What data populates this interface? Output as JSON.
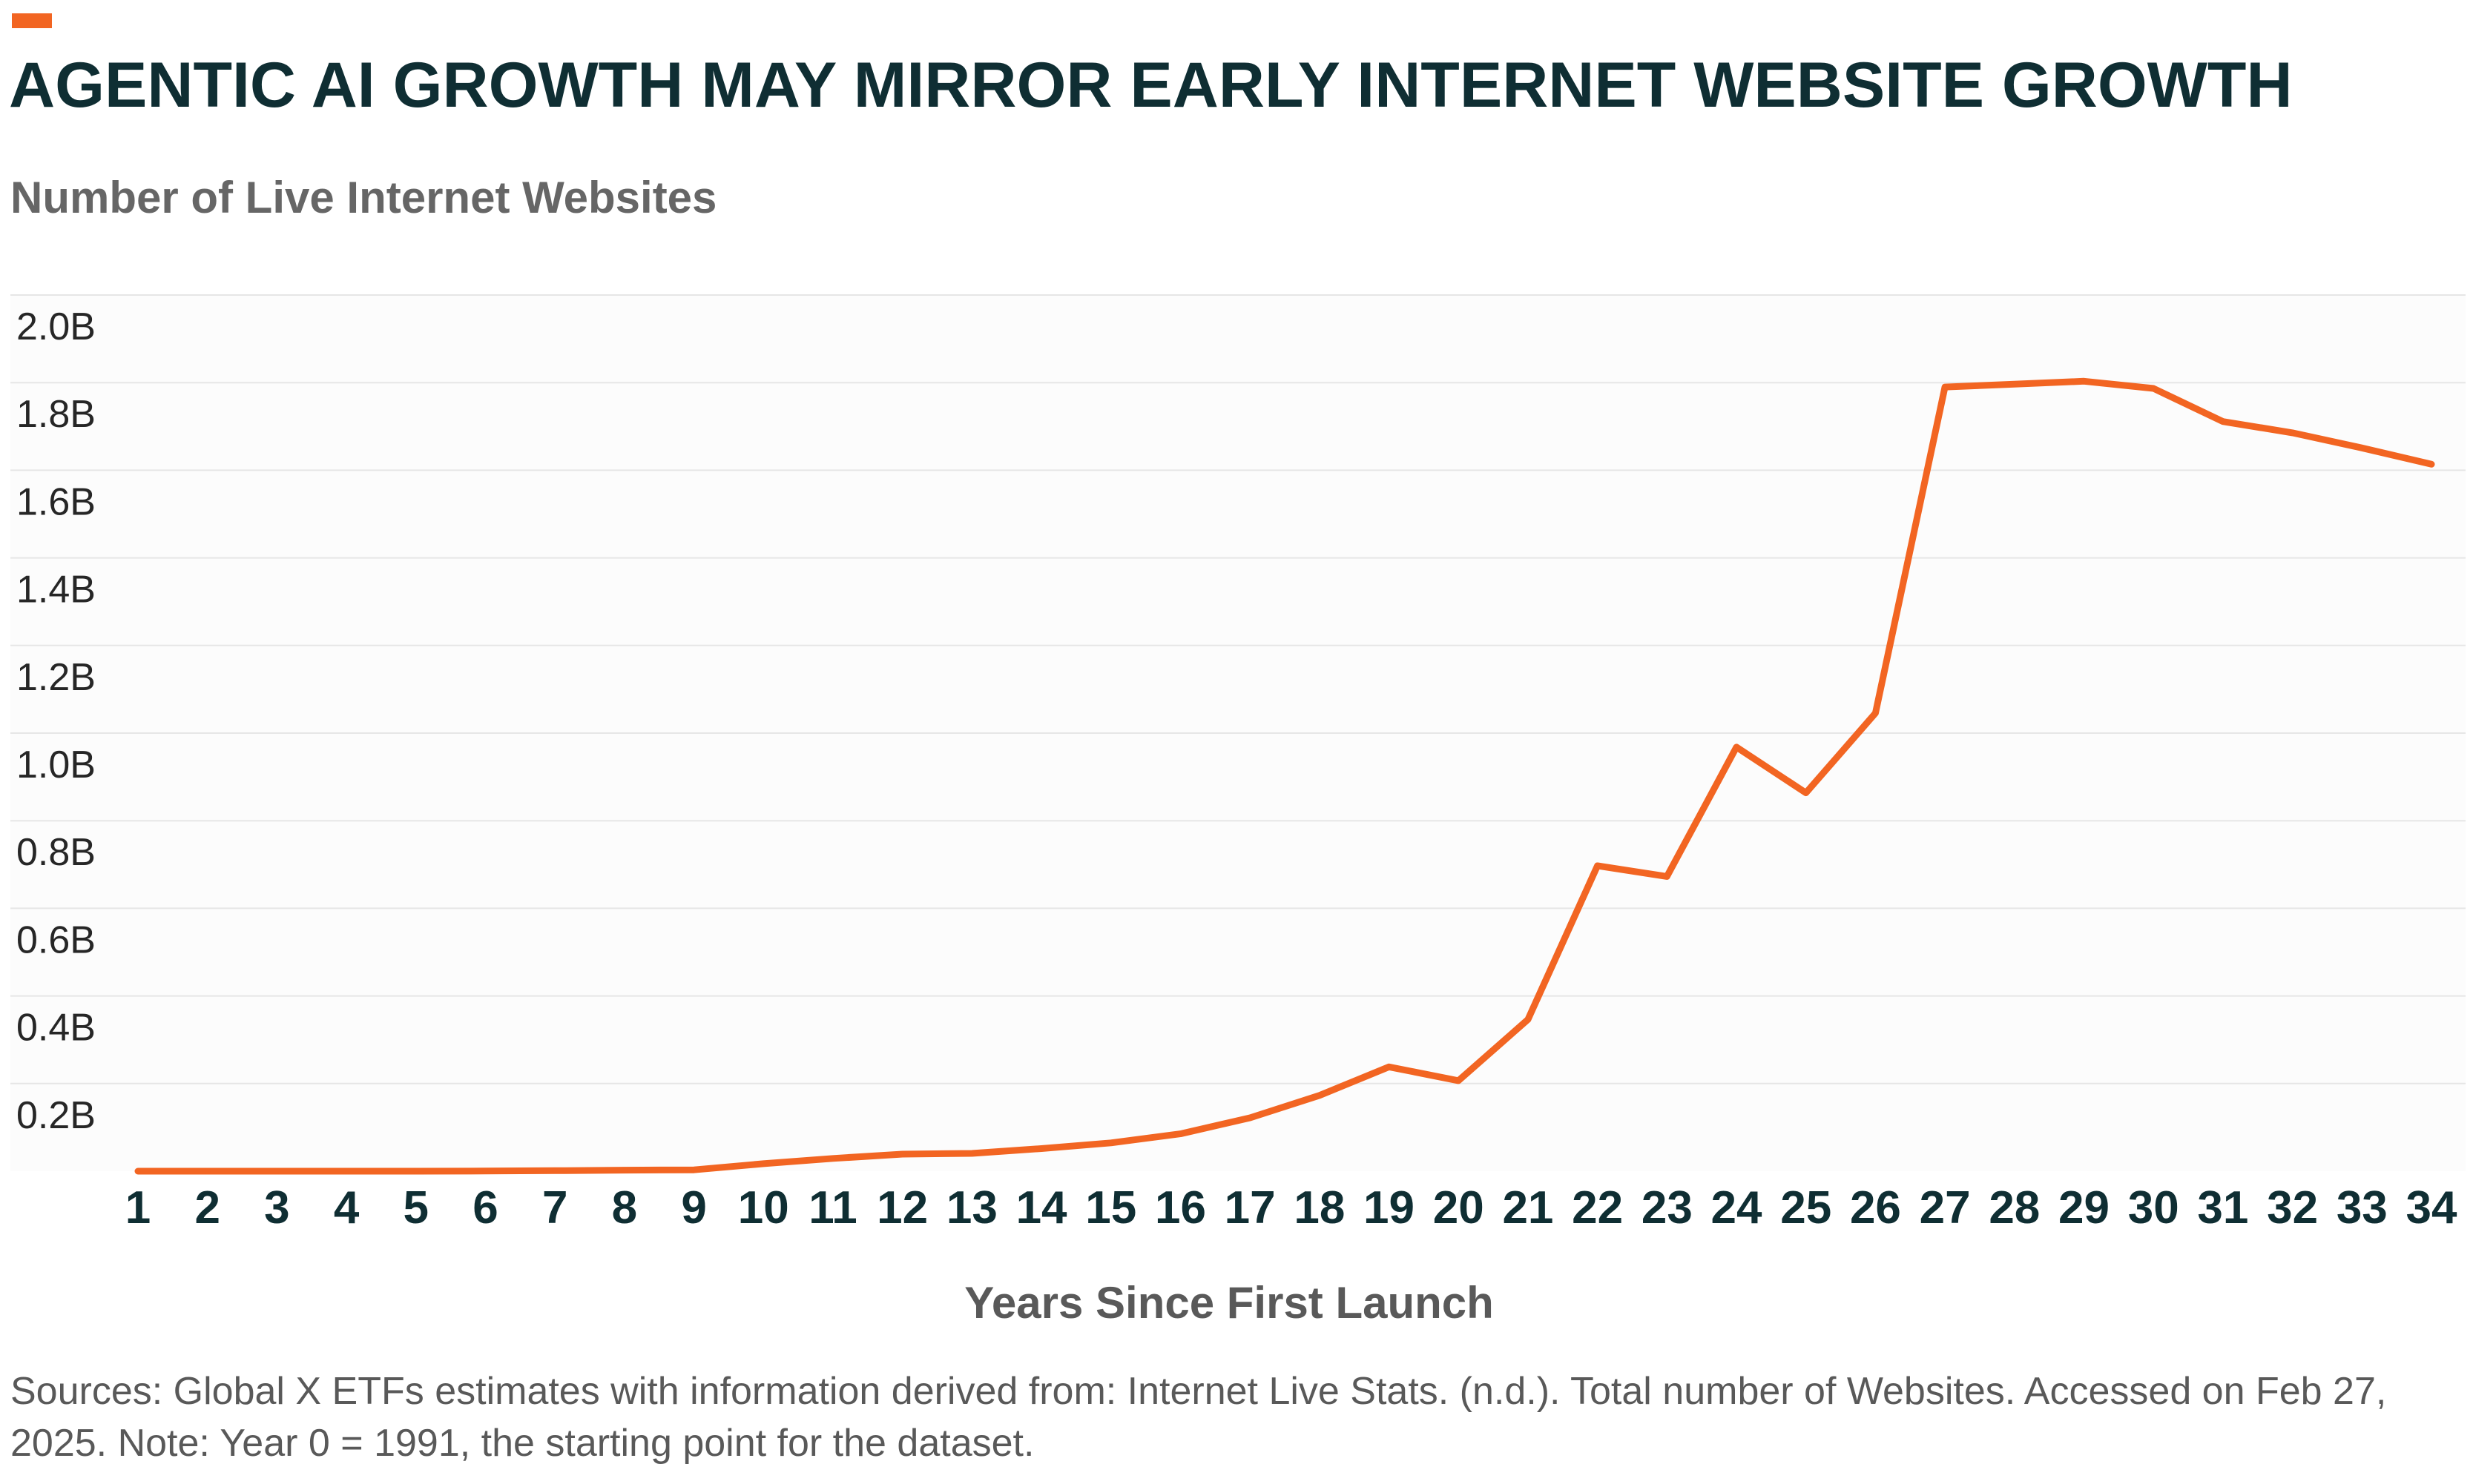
{
  "title": "AGENTIC AI GROWTH MAY MIRROR EARLY INTERNET WEBSITE GROWTH",
  "subtitle": "Number of Live Internet Websites",
  "source_note": "Sources: Global X ETFs estimates with information derived from: Internet Live Stats. (n.d.). Total number of Websites. Accessed on Feb 27, 2025. Note: Year 0 = 1991, the starting point for the dataset.",
  "colors": {
    "accent": "#f26522",
    "line": "#f26522",
    "title": "#0f2e33",
    "grid": "#e6e6e6",
    "plot_bg": "#fcfcfc"
  },
  "chart_data": {
    "type": "line",
    "xlabel": "Years Since First Launch",
    "ylabel": "",
    "ylim": [
      0,
      2.0
    ],
    "y_ticks": [
      0.2,
      0.4,
      0.6,
      0.8,
      1.0,
      1.2,
      1.4,
      1.6,
      1.8,
      2.0
    ],
    "y_tick_labels": [
      "0.2B",
      "0.4B",
      "0.6B",
      "0.8B",
      "1.0B",
      "1.2B",
      "1.4B",
      "1.6B",
      "1.8B",
      "2.0B"
    ],
    "x": [
      1,
      2,
      3,
      4,
      5,
      6,
      7,
      8,
      9,
      10,
      11,
      12,
      13,
      14,
      15,
      16,
      17,
      18,
      19,
      20,
      21,
      22,
      23,
      24,
      25,
      26,
      27,
      28,
      29,
      30,
      31,
      32,
      33,
      34
    ],
    "x_tick_labels": [
      "1",
      "2",
      "3",
      "4",
      "5",
      "6",
      "7",
      "8",
      "9",
      "10",
      "11",
      "12",
      "13",
      "14",
      "15",
      "16",
      "17",
      "18",
      "19",
      "20",
      "21",
      "22",
      "23",
      "24",
      "25",
      "26",
      "27",
      "28",
      "29",
      "30",
      "31",
      "32",
      "33",
      "34"
    ],
    "grid": true,
    "legend": "none",
    "series": [
      {
        "values": [
          0.0,
          0.0,
          0.0,
          0.0,
          0.0,
          0.0003,
          0.0012,
          0.0024,
          0.003,
          0.0171,
          0.0291,
          0.0389,
          0.0406,
          0.0516,
          0.0647,
          0.0853,
          0.1219,
          0.1729,
          0.2381,
          0.2066,
          0.3462,
          0.6971,
          0.6727,
          0.968,
          0.8636,
          1.0455,
          1.79,
          1.7965,
          1.8032,
          1.7868,
          1.7111,
          1.6855,
          1.6509,
          1.6137
        ]
      }
    ]
  }
}
